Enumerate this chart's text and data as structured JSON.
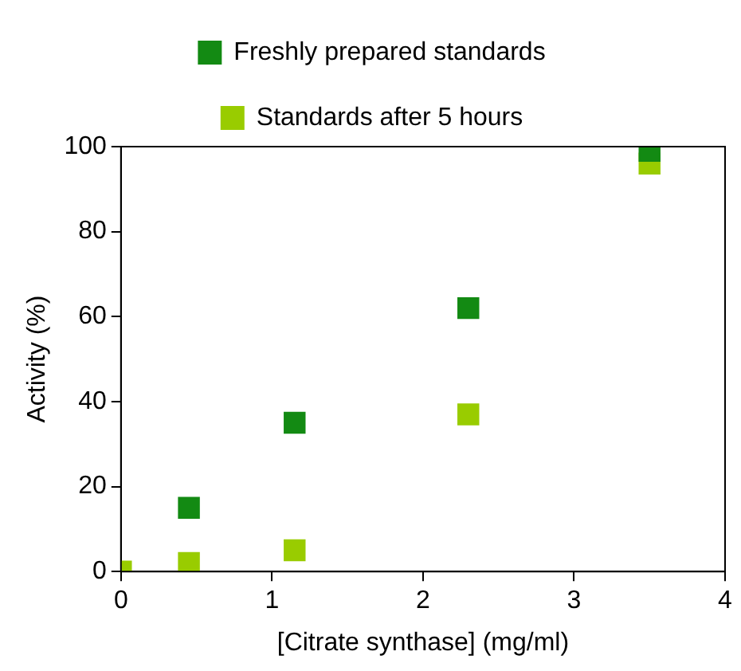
{
  "chart_data": {
    "type": "scatter",
    "xlabel": "[Citrate synthase] (mg/ml)",
    "ylabel": "Activity (%)",
    "series": [
      {
        "name": "Freshly prepared standards",
        "color": "#138a13",
        "x": [
          0.45,
          1.15,
          2.3,
          3.5
        ],
        "values": [
          15,
          35,
          62,
          99
        ]
      },
      {
        "name": "Standards after 5 hours",
        "color": "#99cc00",
        "x": [
          0,
          0.45,
          1.15,
          2.3,
          3.5
        ],
        "values": [
          0,
          2,
          5,
          37,
          96
        ]
      }
    ],
    "xlim": [
      0,
      4
    ],
    "xticks": [
      0,
      1,
      2,
      3,
      4
    ],
    "ylim": [
      0,
      100
    ],
    "yticks": [
      0,
      20,
      40,
      60,
      80,
      100
    ],
    "grid": false,
    "legend": "top",
    "marker": "square"
  }
}
